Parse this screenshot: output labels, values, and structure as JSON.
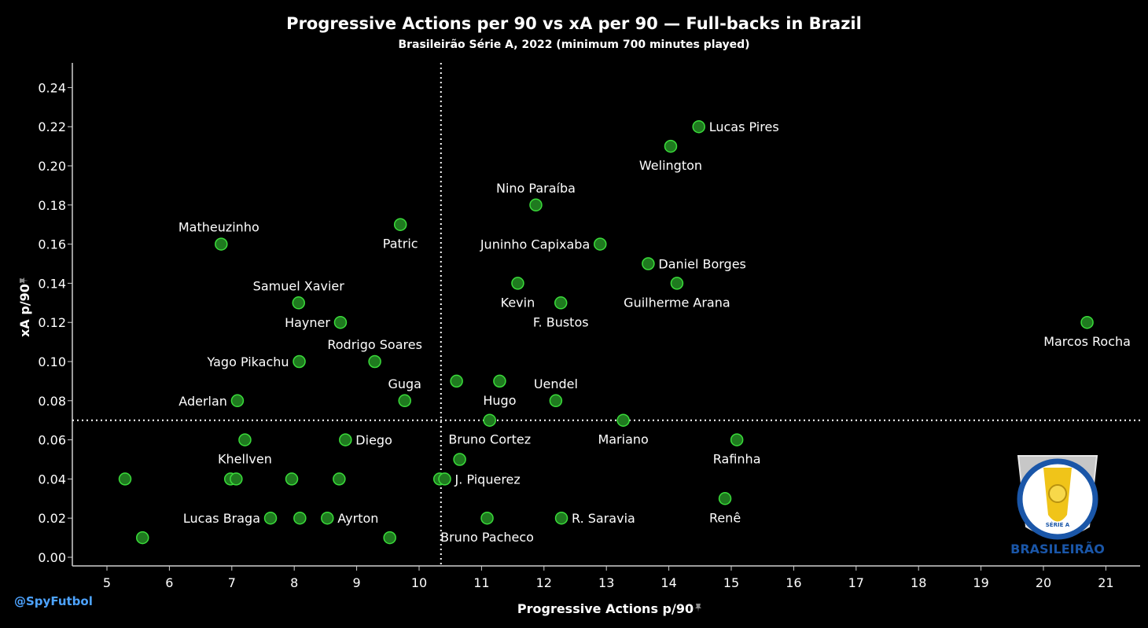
{
  "header": {
    "title": "Progressive Actions per 90 vs xA per 90 — Full-backs in Brazil",
    "subtitle": "Brasileirão Série A, 2022 (minimum 700 minutes played)"
  },
  "footer": {
    "handle": "@SpyFutbol"
  },
  "logo": {
    "text": "BRASILEIRÃO",
    "badge": "SÉRIE A"
  },
  "colors": {
    "background": "#000000",
    "point_fill": "#1f7a1f",
    "point_stroke": "#3adb3a",
    "text": "#ffffff",
    "accent": "#4da3ff"
  },
  "chart_data": {
    "type": "scatter",
    "xlabel": "Progressive Actions p/90",
    "ylabel": "xA p/90",
    "xlim": [
      4.8,
      21.5
    ],
    "ylim": [
      -0.004,
      0.255
    ],
    "xticks": [
      5,
      6,
      7,
      8,
      9,
      10,
      11,
      12,
      13,
      14,
      15,
      16,
      17,
      18,
      19,
      20,
      21
    ],
    "yticks": [
      0.0,
      0.02,
      0.04,
      0.06,
      0.08,
      0.1,
      0.12,
      0.14,
      0.16,
      0.18,
      0.2,
      0.22,
      0.24
    ],
    "reference_lines": {
      "x_mean": 10.35,
      "y_mean": 0.07
    },
    "grid": false,
    "points": [
      {
        "x": 14.48,
        "y": 0.22,
        "label": "Lucas Pires",
        "pos": "right"
      },
      {
        "x": 14.03,
        "y": 0.21,
        "label": "Welington",
        "pos": "below"
      },
      {
        "x": 11.87,
        "y": 0.18,
        "label": "Nino Paraíba",
        "pos": "above"
      },
      {
        "x": 6.83,
        "y": 0.16,
        "label": "Matheuzinho",
        "pos": "above-left"
      },
      {
        "x": 9.7,
        "y": 0.17,
        "label": "Patric",
        "pos": "below"
      },
      {
        "x": 12.9,
        "y": 0.16,
        "label": "Juninho Capixaba",
        "pos": "left"
      },
      {
        "x": 13.67,
        "y": 0.15,
        "label": "Daniel Borges",
        "pos": "right"
      },
      {
        "x": 8.07,
        "y": 0.13,
        "label": "Samuel Xavier",
        "pos": "above"
      },
      {
        "x": 11.58,
        "y": 0.14,
        "label": "Kevin",
        "pos": "below"
      },
      {
        "x": 12.27,
        "y": 0.13,
        "label": "F. Bustos",
        "pos": "below"
      },
      {
        "x": 14.13,
        "y": 0.14,
        "label": "Guilherme Arana",
        "pos": "below"
      },
      {
        "x": 8.74,
        "y": 0.12,
        "label": "Hayner",
        "pos": "left"
      },
      {
        "x": 20.7,
        "y": 0.12,
        "label": "Marcos Rocha",
        "pos": "below"
      },
      {
        "x": 9.29,
        "y": 0.1,
        "label": "Rodrigo Soares",
        "pos": "above"
      },
      {
        "x": 8.08,
        "y": 0.1,
        "label": "Yago Pikachu",
        "pos": "left"
      },
      {
        "x": 10.6,
        "y": 0.09,
        "label": "",
        "pos": "none"
      },
      {
        "x": 11.29,
        "y": 0.09,
        "label": "Hugo",
        "pos": "below"
      },
      {
        "x": 7.09,
        "y": 0.08,
        "label": "Aderlan",
        "pos": "left"
      },
      {
        "x": 9.77,
        "y": 0.08,
        "label": "Guga",
        "pos": "above"
      },
      {
        "x": 12.19,
        "y": 0.08,
        "label": "Uendel",
        "pos": "above"
      },
      {
        "x": 11.13,
        "y": 0.07,
        "label": "Bruno Cortez",
        "pos": "below"
      },
      {
        "x": 13.27,
        "y": 0.07,
        "label": "Mariano",
        "pos": "below"
      },
      {
        "x": 7.21,
        "y": 0.06,
        "label": "Khellven",
        "pos": "below"
      },
      {
        "x": 8.82,
        "y": 0.06,
        "label": "Diego",
        "pos": "right"
      },
      {
        "x": 15.09,
        "y": 0.06,
        "label": "Rafinha",
        "pos": "below"
      },
      {
        "x": 10.65,
        "y": 0.05,
        "label": "",
        "pos": "none"
      },
      {
        "x": 5.29,
        "y": 0.04,
        "label": "",
        "pos": "none"
      },
      {
        "x": 6.98,
        "y": 0.04,
        "label": "",
        "pos": "none"
      },
      {
        "x": 7.07,
        "y": 0.04,
        "label": "",
        "pos": "none"
      },
      {
        "x": 7.96,
        "y": 0.04,
        "label": "",
        "pos": "none"
      },
      {
        "x": 8.72,
        "y": 0.04,
        "label": "",
        "pos": "none"
      },
      {
        "x": 10.33,
        "y": 0.04,
        "label": "",
        "pos": "none"
      },
      {
        "x": 10.41,
        "y": 0.04,
        "label": "J. Piquerez",
        "pos": "right"
      },
      {
        "x": 14.9,
        "y": 0.03,
        "label": "Renê",
        "pos": "below"
      },
      {
        "x": 7.62,
        "y": 0.02,
        "label": "Lucas Braga",
        "pos": "left"
      },
      {
        "x": 8.09,
        "y": 0.02,
        "label": "",
        "pos": "none"
      },
      {
        "x": 8.53,
        "y": 0.02,
        "label": "Ayrton",
        "pos": "right"
      },
      {
        "x": 11.09,
        "y": 0.02,
        "label": "Bruno Pacheco",
        "pos": "below"
      },
      {
        "x": 12.28,
        "y": 0.02,
        "label": "R. Saravia",
        "pos": "right"
      },
      {
        "x": 5.57,
        "y": 0.01,
        "label": "",
        "pos": "none"
      },
      {
        "x": 9.53,
        "y": 0.01,
        "label": "",
        "pos": "none"
      }
    ]
  }
}
